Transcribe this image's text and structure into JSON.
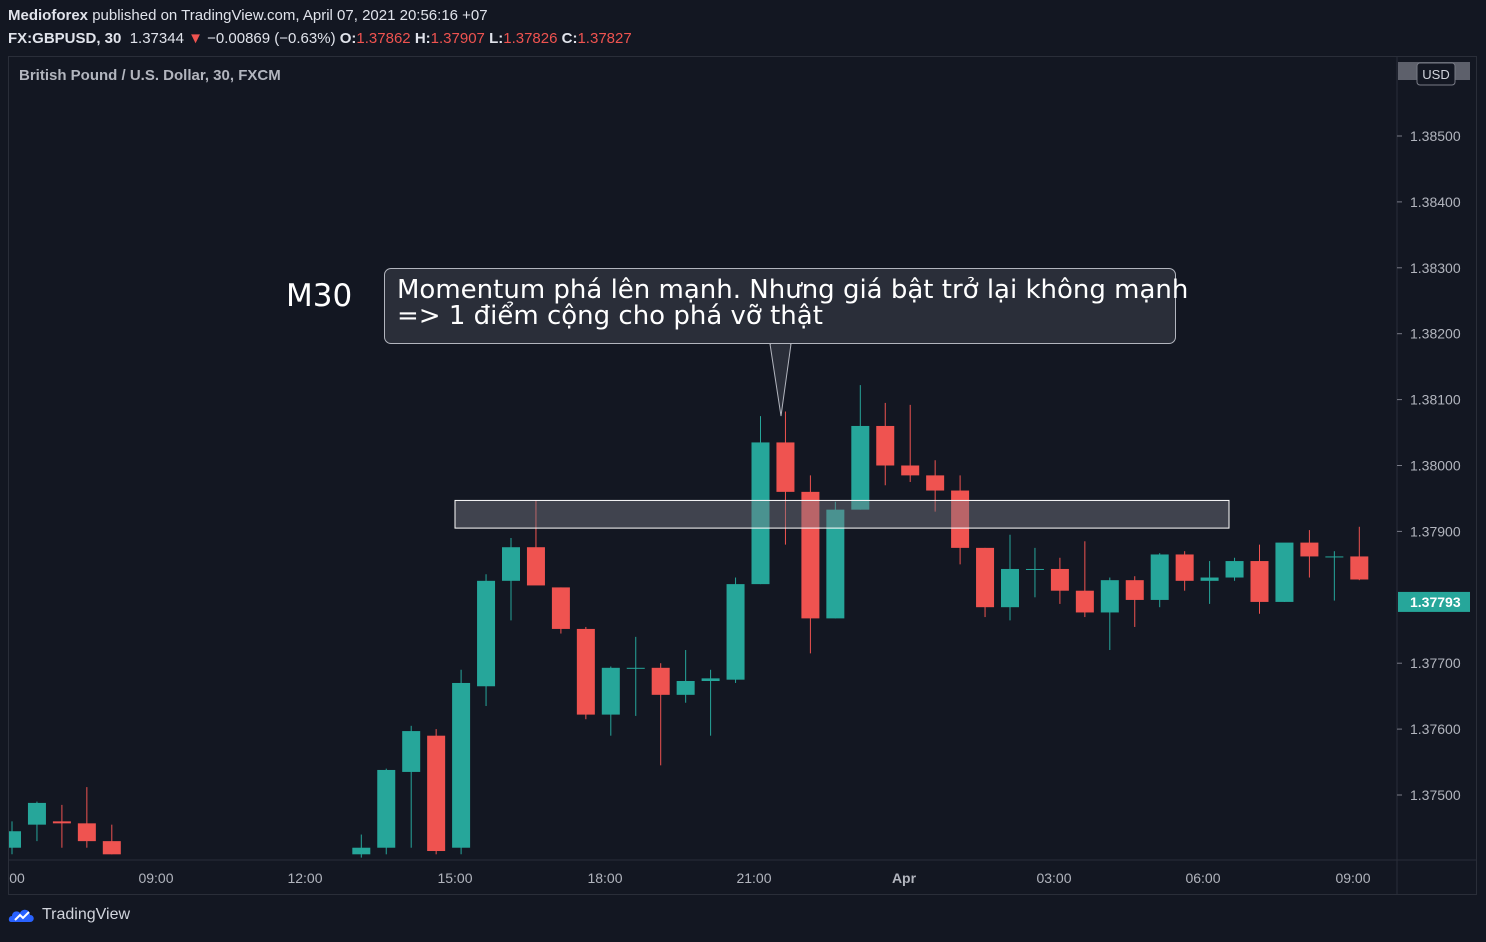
{
  "header": {
    "publisher": "Medioforex",
    "published_text": "published on TradingView.com, April 07, 2021 20:56:16 +07",
    "symbol": "FX:GBPUSD, 30",
    "last": "1.37344",
    "change": "−0.00869 (−0.63%)",
    "o_label": "O:",
    "o_value": "1.37862",
    "h_label": "H:",
    "h_value": "1.37907",
    "l_label": "L:",
    "l_value": "1.37826",
    "c_label": "C:",
    "c_value": "1.37827"
  },
  "series_title": "British Pound / U.S. Dollar, 30, FXCM",
  "currency": "USD",
  "annotation": {
    "timeframe": "M30",
    "line1": "Momentum phá lên mạnh. Nhưng giá bật trở lại không mạnh",
    "line2": "=> 1 điểm cộng cho phá vỡ thật"
  },
  "footer": {
    "brand": "TradingView"
  },
  "colors": {
    "up": "#26a69a",
    "down": "#ef5350",
    "background": "#131722",
    "grid": "#2a2e39",
    "text": "#b2b5be",
    "zone": "#787b86"
  },
  "chart_data": {
    "type": "candlestick",
    "title": "British Pound / U.S. Dollar, 30, FXCM",
    "ylim": [
      1.3741,
      1.3861
    ],
    "y_ticks": [
      "1.38500",
      "1.38400",
      "1.38300",
      "1.38200",
      "1.38100",
      "1.38000",
      "1.37900",
      "1.37700",
      "1.37600",
      "1.37500"
    ],
    "x_ticks": [
      "00",
      "09:00",
      "12:00",
      "15:00",
      "18:00",
      "21:00",
      "Apr",
      "03:00",
      "06:00",
      "09:00"
    ],
    "current_price": "1.37793",
    "zone": {
      "low": 1.37905,
      "high": 1.37947
    },
    "candles": [
      {
        "o": 1.3742,
        "h": 1.3746,
        "l": 1.3741,
        "c": 1.37445
      },
      {
        "o": 1.37455,
        "h": 1.3749,
        "l": 1.3743,
        "c": 1.37488
      },
      {
        "o": 1.3746,
        "h": 1.37485,
        "l": 1.3742,
        "c": 1.37457
      },
      {
        "o": 1.37457,
        "h": 1.37512,
        "l": 1.3742,
        "c": 1.3743
      },
      {
        "o": 1.3743,
        "h": 1.37455,
        "l": 1.3741,
        "c": 1.3741
      },
      null,
      null,
      null,
      null,
      null,
      null,
      null,
      null,
      null,
      {
        "o": 1.3741,
        "h": 1.3744,
        "l": 1.37405,
        "c": 1.3742
      },
      {
        "o": 1.3742,
        "h": 1.3754,
        "l": 1.3741,
        "c": 1.37538
      },
      {
        "o": 1.37535,
        "h": 1.37605,
        "l": 1.3742,
        "c": 1.37597
      },
      {
        "o": 1.3759,
        "h": 1.376,
        "l": 1.3741,
        "c": 1.37415
      },
      {
        "o": 1.3742,
        "h": 1.3769,
        "l": 1.3741,
        "c": 1.3767
      },
      {
        "o": 1.37665,
        "h": 1.37835,
        "l": 1.37635,
        "c": 1.37825
      },
      {
        "o": 1.37825,
        "h": 1.3789,
        "l": 1.37765,
        "c": 1.37876
      },
      {
        "o": 1.37876,
        "h": 1.37947,
        "l": 1.3782,
        "c": 1.37818
      },
      {
        "o": 1.37815,
        "h": 1.37815,
        "l": 1.37745,
        "c": 1.37752
      },
      {
        "o": 1.37752,
        "h": 1.37755,
        "l": 1.37615,
        "c": 1.37622
      },
      {
        "o": 1.37622,
        "h": 1.37695,
        "l": 1.3759,
        "c": 1.37693
      },
      {
        "o": 1.37693,
        "h": 1.3774,
        "l": 1.3762,
        "c": 1.37693
      },
      {
        "o": 1.37693,
        "h": 1.377,
        "l": 1.37545,
        "c": 1.37652
      },
      {
        "o": 1.37652,
        "h": 1.3772,
        "l": 1.3764,
        "c": 1.37673
      },
      {
        "o": 1.37673,
        "h": 1.3769,
        "l": 1.3759,
        "c": 1.37677
      },
      {
        "o": 1.37675,
        "h": 1.3783,
        "l": 1.3767,
        "c": 1.3782
      },
      {
        "o": 1.3782,
        "h": 1.38075,
        "l": 1.3782,
        "c": 1.38035
      },
      {
        "o": 1.38035,
        "h": 1.38082,
        "l": 1.3788,
        "c": 1.3796
      },
      {
        "o": 1.3796,
        "h": 1.37985,
        "l": 1.37715,
        "c": 1.37768
      },
      {
        "o": 1.37768,
        "h": 1.37945,
        "l": 1.37768,
        "c": 1.37933
      },
      {
        "o": 1.37933,
        "h": 1.38122,
        "l": 1.37933,
        "c": 1.3806
      },
      {
        "o": 1.3806,
        "h": 1.38095,
        "l": 1.3797,
        "c": 1.38
      },
      {
        "o": 1.38,
        "h": 1.38092,
        "l": 1.37975,
        "c": 1.37985
      },
      {
        "o": 1.37985,
        "h": 1.38008,
        "l": 1.3793,
        "c": 1.37962
      },
      {
        "o": 1.37962,
        "h": 1.37985,
        "l": 1.3785,
        "c": 1.37875
      },
      {
        "o": 1.37875,
        "h": 1.37875,
        "l": 1.3777,
        "c": 1.37785
      },
      {
        "o": 1.37785,
        "h": 1.37895,
        "l": 1.37765,
        "c": 1.37843
      },
      {
        "o": 1.37843,
        "h": 1.37875,
        "l": 1.378,
        "c": 1.37843
      },
      {
        "o": 1.37843,
        "h": 1.3786,
        "l": 1.3779,
        "c": 1.3781
      },
      {
        "o": 1.3781,
        "h": 1.37885,
        "l": 1.3777,
        "c": 1.37777
      },
      {
        "o": 1.37777,
        "h": 1.3783,
        "l": 1.3772,
        "c": 1.37826
      },
      {
        "o": 1.37826,
        "h": 1.37832,
        "l": 1.37755,
        "c": 1.37796
      },
      {
        "o": 1.37796,
        "h": 1.37867,
        "l": 1.37785,
        "c": 1.37865
      },
      {
        "o": 1.37865,
        "h": 1.3787,
        "l": 1.3781,
        "c": 1.37825
      },
      {
        "o": 1.37825,
        "h": 1.37855,
        "l": 1.3779,
        "c": 1.3783
      },
      {
        "o": 1.3783,
        "h": 1.3786,
        "l": 1.37825,
        "c": 1.37855
      },
      {
        "o": 1.37855,
        "h": 1.3788,
        "l": 1.37775,
        "c": 1.37793
      },
      {
        "o": 1.37793,
        "h": 1.3788,
        "l": 1.37793,
        "c": 1.37883
      },
      {
        "o": 1.37883,
        "h": 1.37902,
        "l": 1.3783,
        "c": 1.37862
      },
      {
        "o": 1.37862,
        "h": 1.3787,
        "l": 1.37795,
        "c": 1.37862
      },
      {
        "o": 1.37862,
        "h": 1.37907,
        "l": 1.37826,
        "c": 1.37827
      }
    ]
  }
}
